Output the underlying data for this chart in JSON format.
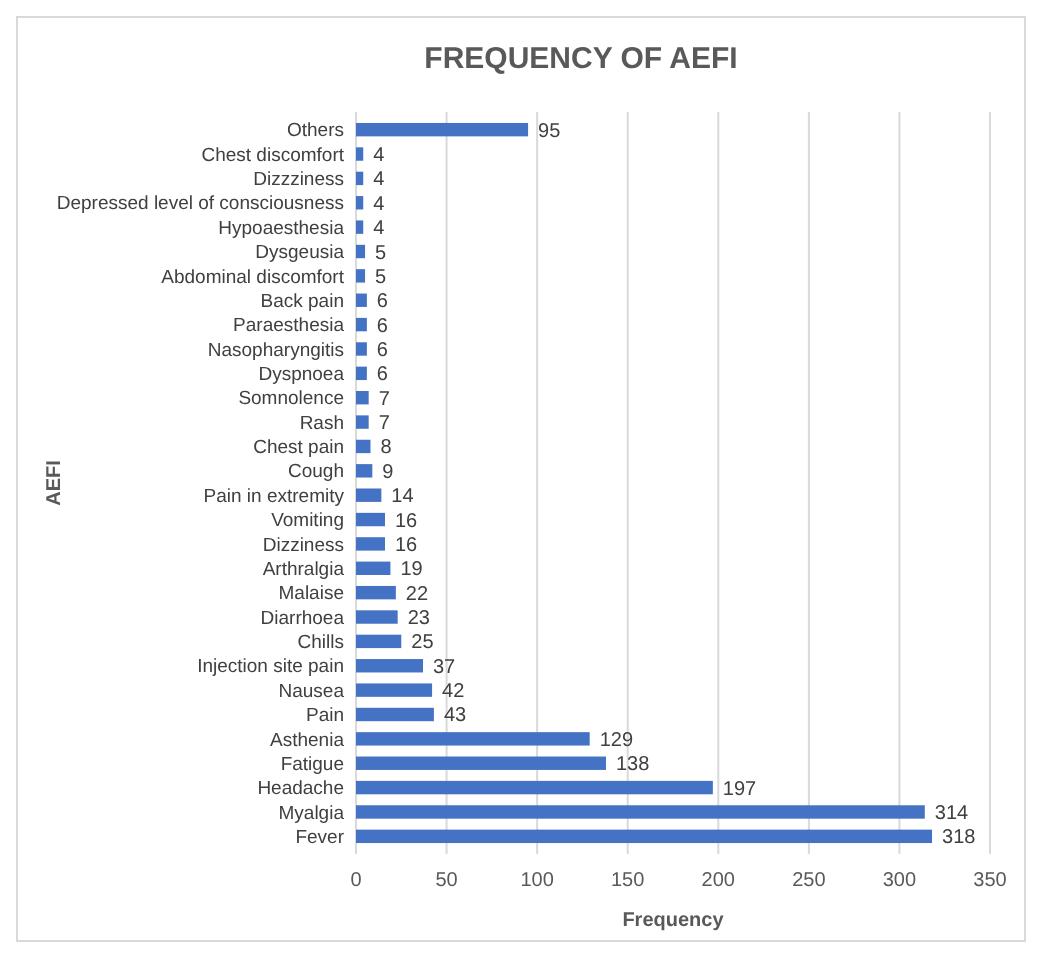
{
  "chart_data": {
    "type": "bar",
    "orientation": "horizontal",
    "title": "FREQUENCY OF AEFI",
    "xlabel": "Frequency",
    "ylabel": "AEFI",
    "categories": [
      "Others",
      "Chest discomfort",
      "Dizzziness",
      "Depressed level of consciousness",
      "Hypoaesthesia",
      "Dysgeusia",
      "Abdominal discomfort",
      "Back pain",
      "Paraesthesia",
      "Nasopharyngitis",
      "Dyspnoea",
      "Somnolence",
      "Rash",
      "Chest pain",
      "Cough",
      "Pain in extremity",
      "Vomiting",
      "Dizziness",
      "Arthralgia",
      "Malaise",
      "Diarrhoea",
      "Chills",
      "Injection site pain",
      "Nausea",
      "Pain",
      "Asthenia",
      "Fatigue",
      "Headache",
      "Myalgia",
      "Fever"
    ],
    "values": [
      95,
      4,
      4,
      4,
      4,
      5,
      5,
      6,
      6,
      6,
      6,
      7,
      7,
      8,
      9,
      14,
      16,
      16,
      19,
      22,
      23,
      25,
      37,
      42,
      43,
      129,
      138,
      197,
      314,
      318
    ],
    "color": "#4472c4",
    "xlim": [
      0,
      350
    ],
    "xticks": [
      0,
      50,
      100,
      150,
      200,
      250,
      300,
      350
    ],
    "grid": "x",
    "data_labels": true
  }
}
